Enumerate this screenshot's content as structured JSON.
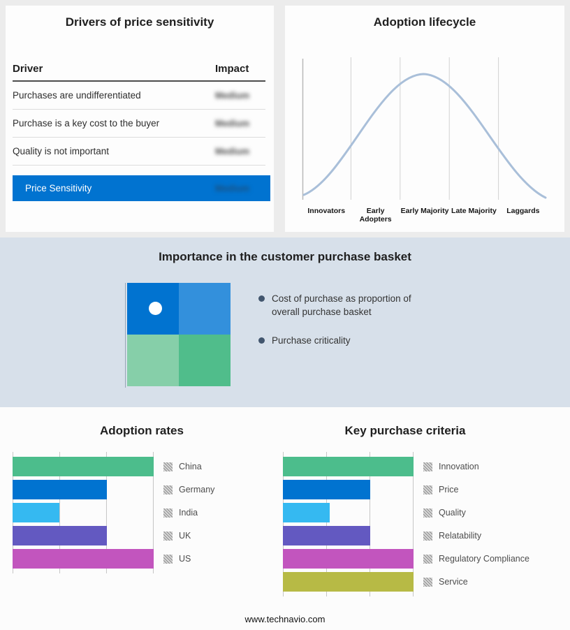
{
  "drivers_panel": {
    "title": "Drivers of price sensitivity",
    "columns": {
      "driver": "Driver",
      "impact": "Impact"
    },
    "rows": [
      {
        "driver": "Purchases are undifferentiated",
        "impact": "Medium"
      },
      {
        "driver": "Purchase is a key cost to the buyer",
        "impact": "Medium"
      },
      {
        "driver": "Quality is not important",
        "impact": "Medium"
      }
    ],
    "highlight_row": {
      "label": "Price Sensitivity",
      "impact": "Medium"
    },
    "highlight_color": "#0173d0",
    "impact_values_blurred": true
  },
  "lifecycle_panel": {
    "title": "Adoption lifecycle",
    "stages": [
      "Innovators",
      "Early Adopters",
      "Early Majority",
      "Late Majority",
      "Laggards"
    ],
    "curve_color": "#a9bfd9"
  },
  "basket_section": {
    "title": "Importance in the customer purchase basket",
    "bullets": [
      "Cost of purchase as proportion of overall purchase basket",
      "Purchase criticality"
    ],
    "quadrant_colors": {
      "top_left": "#0173d0",
      "top_right": "#3390dc",
      "bottom_left": "#86cfa9",
      "bottom_right": "#50bd8b"
    },
    "background": "#d7e0ea"
  },
  "footer": {
    "url_text": "www.technavio.com"
  },
  "chart_data": [
    {
      "type": "bar",
      "orientation": "horizontal",
      "title": "Adoption rates",
      "categories": [
        "China",
        "Germany",
        "India",
        "UK",
        "US"
      ],
      "values": [
        100,
        67,
        33,
        67,
        100
      ],
      "value_note": "relative bar lengths in % of axis; no numeric axis labels shown",
      "colors": [
        "#4cbd8c",
        "#0173d0",
        "#35b9f1",
        "#6359c1",
        "#c255be"
      ],
      "gridlines": "vertical at 0, 33, 67, 100 %",
      "legend_position": "right"
    },
    {
      "type": "bar",
      "orientation": "horizontal",
      "title": "Key purchase criteria",
      "categories": [
        "Innovation",
        "Price",
        "Quality",
        "Relatability",
        "Regulatory Compliance",
        "Service"
      ],
      "values": [
        100,
        67,
        36,
        67,
        100,
        100
      ],
      "value_note": "relative bar lengths in % of axis; no numeric axis labels shown",
      "colors": [
        "#4cbd8c",
        "#0173d0",
        "#35b9f1",
        "#6359c1",
        "#c255be",
        "#b7ba45"
      ],
      "gridlines": "vertical at 0, 33, 67, 100 %",
      "legend_position": "right"
    },
    {
      "type": "line",
      "title": "Adoption lifecycle",
      "x": [
        "Innovators",
        "Early Adopters",
        "Early Majority",
        "Late Majority",
        "Laggards"
      ],
      "description": "Bell-shaped adoption curve rising from Innovators, peaking at Early Majority, falling to Laggards",
      "y_axis": "unlabeled",
      "line_color": "#a9bfd9"
    }
  ]
}
